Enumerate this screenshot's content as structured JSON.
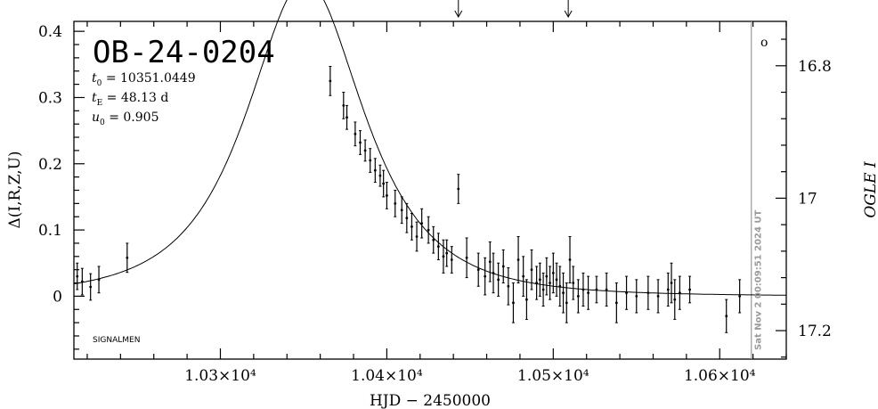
{
  "chart_data": {
    "type": "scatter",
    "title": "OB-24-0204",
    "xlabel": "HJD − 2450000",
    "ylabel": "Δ(I,R,Z,U)",
    "ylabel_right": "OGLE I",
    "xlim": [
      10212,
      10640
    ],
    "ylim": [
      -0.095,
      0.415
    ],
    "xticks": [
      {
        "value": 10300,
        "label": "1.03×10⁴"
      },
      {
        "value": 10400,
        "label": "1.04×10⁴"
      },
      {
        "value": 10500,
        "label": "1.05×10⁴"
      },
      {
        "value": 10600,
        "label": "1.06×10⁴"
      }
    ],
    "yticks": [
      {
        "value": 0,
        "label": "0"
      },
      {
        "value": 0.1,
        "label": "0.1"
      },
      {
        "value": 0.2,
        "label": "0.2"
      },
      {
        "value": 0.3,
        "label": "0.3"
      },
      {
        "value": 0.4,
        "label": "0.4"
      }
    ],
    "right_ticks": [
      {
        "value": 0.348,
        "label": "16.8"
      },
      {
        "value": 0.148,
        "label": "17"
      },
      {
        "value": -0.052,
        "label": "17.2"
      }
    ],
    "params": [
      {
        "name": "t",
        "sub": "0",
        "text": " = 10351.0449"
      },
      {
        "name": "t",
        "sub": "E",
        "text": " = 48.13 d"
      },
      {
        "name": "u",
        "sub": "0",
        "text": " = 0.905"
      }
    ],
    "model": {
      "t0": 10351.0449,
      "tE": 48.13,
      "u0": 0.905,
      "scale": 0.4765
    },
    "arrows_x": [
      10443,
      10509
    ],
    "vline_x": 10619,
    "date_label": "Sat Nov  2 00:09:51 2024 UT",
    "watermark": "SIGNALMEN",
    "marker_symbol": "o",
    "points": [
      {
        "x": 10214,
        "y": 0.03,
        "e": 0.02
      },
      {
        "x": 10217,
        "y": 0.022,
        "e": 0.02
      },
      {
        "x": 10222,
        "y": 0.014,
        "e": 0.02
      },
      {
        "x": 10227,
        "y": 0.025,
        "e": 0.02
      },
      {
        "x": 10244,
        "y": 0.058,
        "e": 0.022
      },
      {
        "x": 10366,
        "y": 0.325,
        "e": 0.022
      },
      {
        "x": 10374,
        "y": 0.288,
        "e": 0.02
      },
      {
        "x": 10376,
        "y": 0.27,
        "e": 0.018
      },
      {
        "x": 10381,
        "y": 0.245,
        "e": 0.018
      },
      {
        "x": 10384,
        "y": 0.232,
        "e": 0.018
      },
      {
        "x": 10387,
        "y": 0.22,
        "e": 0.016
      },
      {
        "x": 10390,
        "y": 0.205,
        "e": 0.018
      },
      {
        "x": 10393,
        "y": 0.19,
        "e": 0.018
      },
      {
        "x": 10396,
        "y": 0.182,
        "e": 0.016
      },
      {
        "x": 10398,
        "y": 0.17,
        "e": 0.02
      },
      {
        "x": 10400,
        "y": 0.152,
        "e": 0.02
      },
      {
        "x": 10405,
        "y": 0.14,
        "e": 0.02
      },
      {
        "x": 10409,
        "y": 0.13,
        "e": 0.02
      },
      {
        "x": 10412,
        "y": 0.118,
        "e": 0.022
      },
      {
        "x": 10415,
        "y": 0.105,
        "e": 0.02
      },
      {
        "x": 10418,
        "y": 0.09,
        "e": 0.022
      },
      {
        "x": 10421,
        "y": 0.11,
        "e": 0.022
      },
      {
        "x": 10425,
        "y": 0.1,
        "e": 0.02
      },
      {
        "x": 10428,
        "y": 0.085,
        "e": 0.02
      },
      {
        "x": 10431,
        "y": 0.075,
        "e": 0.02
      },
      {
        "x": 10434,
        "y": 0.06,
        "e": 0.025
      },
      {
        "x": 10436,
        "y": 0.065,
        "e": 0.02
      },
      {
        "x": 10439,
        "y": 0.055,
        "e": 0.02
      },
      {
        "x": 10443,
        "y": 0.162,
        "e": 0.022
      },
      {
        "x": 10448,
        "y": 0.058,
        "e": 0.03
      },
      {
        "x": 10455,
        "y": 0.04,
        "e": 0.025
      },
      {
        "x": 10459,
        "y": 0.03,
        "e": 0.028
      },
      {
        "x": 10462,
        "y": 0.052,
        "e": 0.03
      },
      {
        "x": 10464,
        "y": 0.035,
        "e": 0.03
      },
      {
        "x": 10467,
        "y": 0.025,
        "e": 0.025
      },
      {
        "x": 10470,
        "y": 0.045,
        "e": 0.025
      },
      {
        "x": 10473,
        "y": 0.015,
        "e": 0.028
      },
      {
        "x": 10476,
        "y": -0.01,
        "e": 0.03
      },
      {
        "x": 10479,
        "y": 0.055,
        "e": 0.035
      },
      {
        "x": 10482,
        "y": 0.03,
        "e": 0.03
      },
      {
        "x": 10484,
        "y": -0.005,
        "e": 0.03
      },
      {
        "x": 10487,
        "y": 0.04,
        "e": 0.03
      },
      {
        "x": 10490,
        "y": 0.02,
        "e": 0.025
      },
      {
        "x": 10492,
        "y": 0.025,
        "e": 0.025
      },
      {
        "x": 10494,
        "y": 0.01,
        "e": 0.025
      },
      {
        "x": 10496,
        "y": 0.03,
        "e": 0.028
      },
      {
        "x": 10498,
        "y": 0.02,
        "e": 0.025
      },
      {
        "x": 10500,
        "y": 0.035,
        "e": 0.03
      },
      {
        "x": 10502,
        "y": 0.025,
        "e": 0.025
      },
      {
        "x": 10504,
        "y": 0.015,
        "e": 0.03
      },
      {
        "x": 10506,
        "y": 0.005,
        "e": 0.03
      },
      {
        "x": 10508,
        "y": -0.01,
        "e": 0.03
      },
      {
        "x": 10510,
        "y": 0.055,
        "e": 0.035
      },
      {
        "x": 10512,
        "y": 0.02,
        "e": 0.025
      },
      {
        "x": 10515,
        "y": 0.0,
        "e": 0.025
      },
      {
        "x": 10518,
        "y": 0.01,
        "e": 0.025
      },
      {
        "x": 10521,
        "y": 0.005,
        "e": 0.025
      },
      {
        "x": 10526,
        "y": 0.01,
        "e": 0.02
      },
      {
        "x": 10532,
        "y": 0.01,
        "e": 0.025
      },
      {
        "x": 10538,
        "y": -0.01,
        "e": 0.03
      },
      {
        "x": 10544,
        "y": 0.005,
        "e": 0.025
      },
      {
        "x": 10550,
        "y": 0.0,
        "e": 0.025
      },
      {
        "x": 10557,
        "y": 0.005,
        "e": 0.025
      },
      {
        "x": 10563,
        "y": 0.0,
        "e": 0.025
      },
      {
        "x": 10569,
        "y": 0.01,
        "e": 0.025
      },
      {
        "x": 10571,
        "y": 0.02,
        "e": 0.03
      },
      {
        "x": 10573,
        "y": -0.005,
        "e": 0.03
      },
      {
        "x": 10576,
        "y": 0.005,
        "e": 0.025
      },
      {
        "x": 10582,
        "y": 0.01,
        "e": 0.02
      },
      {
        "x": 10604,
        "y": -0.03,
        "e": 0.025
      },
      {
        "x": 10612,
        "y": 0.0,
        "e": 0.025
      }
    ]
  }
}
